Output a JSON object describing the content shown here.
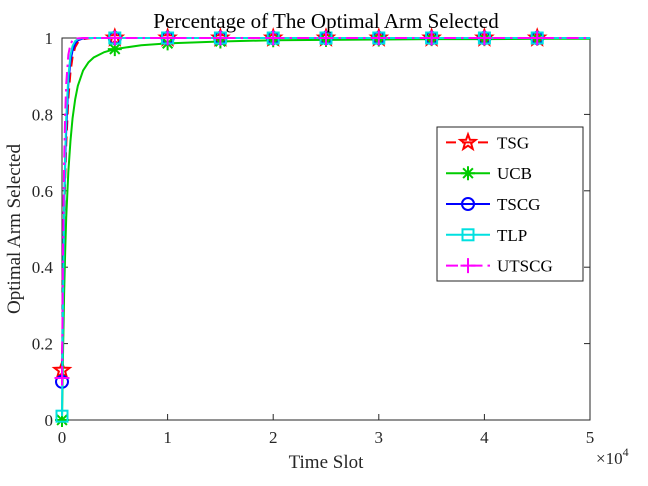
{
  "axis": {
    "color": "#262626",
    "background": "#ffffff"
  },
  "chart_data": {
    "type": "line",
    "title": "Percentage of The Optimal Arm Selected",
    "xlabel": "Time Slot",
    "ylabel": "Optimal Arm Selected",
    "x_scale": {
      "prefix": "×10",
      "exponent": "4"
    },
    "xlim": [
      0,
      50000
    ],
    "ylim": [
      0,
      1
    ],
    "xticks": [
      0,
      10000,
      20000,
      30000,
      40000,
      50000
    ],
    "xtick_labels": [
      "0",
      "1",
      "2",
      "3",
      "4",
      "5"
    ],
    "yticks": [
      0,
      0.2,
      0.4,
      0.6,
      0.8,
      1
    ],
    "ytick_labels": [
      "0",
      "0.2",
      "0.4",
      "0.6",
      "0.8",
      "1"
    ],
    "grid": false,
    "legend": {
      "position": "middle-right",
      "order": [
        "TSG",
        "UCB",
        "TSCG",
        "TLP",
        "UTSCG"
      ]
    },
    "x": [
      0,
      100,
      200,
      300,
      400,
      600,
      800,
      1000,
      1250,
      1500,
      2000,
      2500,
      3000,
      4000,
      5000,
      7500,
      10000,
      15000,
      20000,
      25000,
      30000,
      35000,
      40000,
      45000,
      50000
    ],
    "marker_x": [
      0,
      5000,
      10000,
      15000,
      20000,
      25000,
      30000,
      35000,
      40000,
      45000
    ],
    "series": [
      {
        "name": "TSG",
        "color": "#ff0000",
        "line_style": "dashed",
        "marker": "pentagram",
        "values": [
          0.13,
          0.35,
          0.51,
          0.63,
          0.72,
          0.84,
          0.91,
          0.95,
          0.976,
          0.988,
          0.997,
          0.999,
          1,
          1,
          1,
          1,
          1,
          1,
          1,
          1,
          1,
          1,
          1,
          1,
          1
        ]
      },
      {
        "name": "UCB",
        "color": "#00cc00",
        "line_style": "solid",
        "marker": "asterisk",
        "values": [
          0,
          0.18,
          0.33,
          0.44,
          0.53,
          0.65,
          0.73,
          0.79,
          0.84,
          0.875,
          0.915,
          0.936,
          0.949,
          0.963,
          0.971,
          0.981,
          0.986,
          0.991,
          0.994,
          0.995,
          0.996,
          0.997,
          0.997,
          0.998,
          0.998
        ]
      },
      {
        "name": "TSCG",
        "color": "#0000ff",
        "line_style": "solid",
        "marker": "circle",
        "values": [
          0.1,
          0.36,
          0.54,
          0.67,
          0.76,
          0.88,
          0.94,
          0.967,
          0.986,
          0.994,
          0.999,
          1,
          1,
          1,
          1,
          1,
          1,
          1,
          1,
          1,
          1,
          1,
          1,
          1,
          1
        ]
      },
      {
        "name": "TLP",
        "color": "#00e0e0",
        "line_style": "solid",
        "marker": "square",
        "values": [
          0.01,
          0.33,
          0.54,
          0.69,
          0.79,
          0.9,
          0.954,
          0.979,
          0.992,
          0.997,
          1,
          1,
          1,
          1,
          1,
          1,
          1,
          1,
          1,
          1,
          1,
          1,
          1,
          1,
          1
        ]
      },
      {
        "name": "UTSCG",
        "color": "#ff00ff",
        "line_style": "dashdot",
        "marker": "plus",
        "values": [
          0.11,
          0.46,
          0.67,
          0.8,
          0.88,
          0.956,
          0.984,
          0.994,
          0.998,
          0.999,
          1,
          1,
          1,
          1,
          1,
          1,
          1,
          1,
          1,
          1,
          1,
          1,
          1,
          1,
          1
        ]
      }
    ]
  }
}
